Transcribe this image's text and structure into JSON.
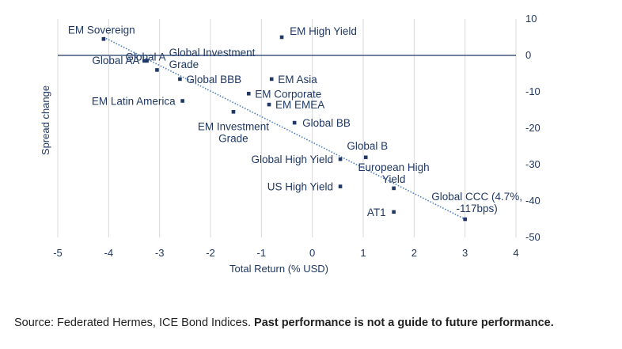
{
  "chart_data": {
    "type": "scatter",
    "xlabel": "Total Return (% USD)",
    "ylabel": "Spread change",
    "xlim": [
      -5,
      4
    ],
    "ylim": [
      -50,
      10
    ],
    "x_ticks": [
      "-5",
      "-4",
      "-3",
      "-2",
      "-1",
      "0",
      "1",
      "2",
      "3",
      "4"
    ],
    "y_ticks": [
      "10",
      "0",
      "-10",
      "-20",
      "-30",
      "-40",
      "-50"
    ],
    "y_axis_side": "right",
    "grid": {
      "horizontal": false,
      "vertical": true
    },
    "trendline": {
      "style": "dotted",
      "from": [
        -4.1,
        5
      ],
      "to": [
        3.0,
        -45
      ]
    },
    "points": [
      {
        "label": [
          "EM Sovereign"
        ],
        "x": -4.1,
        "y": 4.5
      },
      {
        "label": [
          "EM High Yield"
        ],
        "x": -0.6,
        "y": 5
      },
      {
        "label": [
          "Global A"
        ],
        "x": -3.05,
        "y": -4
      },
      {
        "label": [
          "Global Investment",
          "Grade"
        ],
        "x": -3.25,
        "y": -1.5
      },
      {
        "label": [
          "Global AA"
        ],
        "x": -3.3,
        "y": -1.5
      },
      {
        "label": [
          "Global BBB"
        ],
        "x": -2.6,
        "y": -6.5
      },
      {
        "label": [
          "EM Asia"
        ],
        "x": -0.8,
        "y": -6.5
      },
      {
        "label": [
          "EM Corporate"
        ],
        "x": -1.25,
        "y": -10.5
      },
      {
        "label": [
          "EM EMEA"
        ],
        "x": -0.85,
        "y": -13.5
      },
      {
        "label": [
          "EM Latin America"
        ],
        "x": -2.55,
        "y": -12.5
      },
      {
        "label": [
          "EM Investment",
          "Grade"
        ],
        "x": -1.55,
        "y": -15.5
      },
      {
        "label": [
          "Global BB"
        ],
        "x": -0.35,
        "y": -18.5
      },
      {
        "label": [
          "Global B"
        ],
        "x": 1.05,
        "y": -28
      },
      {
        "label": [
          "Global High Yield"
        ],
        "x": 0.55,
        "y": -28.5
      },
      {
        "label": [
          "European High",
          "Yield"
        ],
        "x": 1.6,
        "y": -36.5
      },
      {
        "label": [
          "US High Yield"
        ],
        "x": 0.55,
        "y": -36
      },
      {
        "label": [
          "Global CCC (4.7%,",
          "-117bps)"
        ],
        "x": 3.0,
        "y": -45
      },
      {
        "label": [
          "AT1"
        ],
        "x": 1.6,
        "y": -43
      }
    ]
  },
  "source": {
    "text": "Source: Federated Hermes, ICE Bond Indices. ",
    "bold": "Past performance is not a guide to future performance."
  },
  "colors": {
    "text": "#1f3864",
    "marker": "#1f3864",
    "zero_line": "#1f3864",
    "trendline": "#4a7fc1",
    "grid": "#d9d9d9"
  }
}
